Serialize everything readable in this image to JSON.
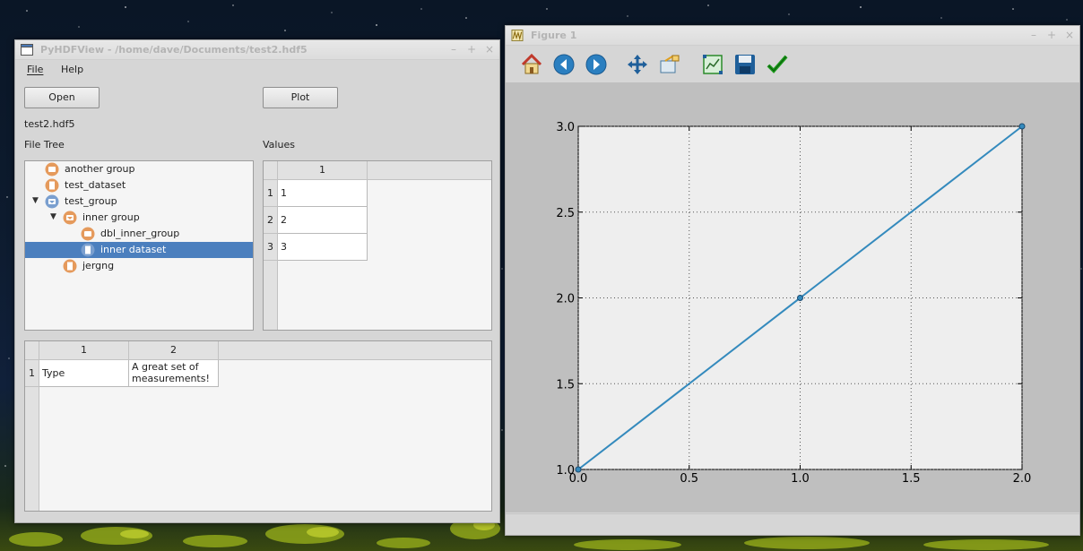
{
  "pyhdfview": {
    "title": "PyHDFView - /home/dave/Documents/test2.hdf5",
    "menu": [
      "File",
      "Help"
    ],
    "open_label": "Open",
    "plot_label": "Plot",
    "filename": "test2.hdf5",
    "file_tree_label": "File Tree",
    "values_label": "Values",
    "tree": [
      {
        "label": "another group",
        "type": "group",
        "expanded": false
      },
      {
        "label": "test_dataset",
        "type": "dataset"
      },
      {
        "label": "test_group",
        "type": "group",
        "expanded": true
      },
      {
        "label": "inner group",
        "type": "group",
        "expanded": true
      },
      {
        "label": "dbl_inner_group",
        "type": "group",
        "expanded": false
      },
      {
        "label": "inner dataset",
        "type": "dataset",
        "selected": true
      },
      {
        "label": "jergng",
        "type": "dataset"
      }
    ],
    "values_table": {
      "columns": [
        "1"
      ],
      "rows": [
        [
          "1",
          "1"
        ],
        [
          "2",
          "2"
        ],
        [
          "3",
          "3"
        ]
      ]
    },
    "attr_table": {
      "columns": [
        "1",
        "2"
      ],
      "rows": [
        [
          "1",
          "Type",
          "A great set of",
          "measurements!"
        ]
      ]
    },
    "window_buttons": [
      "–",
      "+",
      "×"
    ]
  },
  "figure": {
    "title": "Figure 1",
    "window_buttons": [
      "–",
      "+",
      "×"
    ],
    "toolbar": [
      "home-icon",
      "back-icon",
      "forward-icon",
      "pan-icon",
      "zoom-icon",
      "subplots-icon",
      "save-icon",
      "edit-icon"
    ]
  },
  "chart_data": {
    "type": "line",
    "x": [
      0.0,
      1.0,
      2.0
    ],
    "y": [
      1.0,
      2.0,
      3.0
    ],
    "xlim": [
      0.0,
      2.0
    ],
    "ylim": [
      1.0,
      3.0
    ],
    "xticks": [
      "0.0",
      "0.5",
      "1.0",
      "1.5",
      "2.0"
    ],
    "yticks": [
      "1.0",
      "1.5",
      "2.0",
      "2.5",
      "3.0"
    ],
    "grid": true,
    "line_color": "#348abd",
    "marker": "o"
  }
}
